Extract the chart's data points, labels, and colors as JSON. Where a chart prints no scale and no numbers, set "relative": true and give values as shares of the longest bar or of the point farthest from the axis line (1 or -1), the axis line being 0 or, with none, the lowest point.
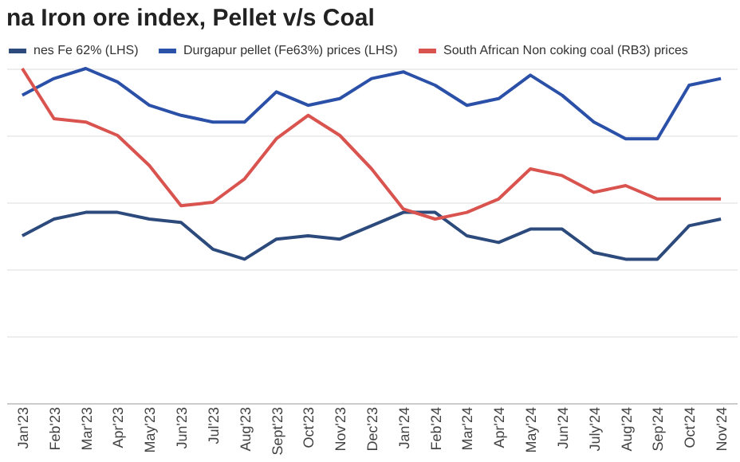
{
  "chart_data": {
    "type": "line",
    "title": "na Iron ore index, Pellet v/s Coal",
    "relative": true,
    "grid": "y",
    "legend": "top",
    "categories": [
      "Jan'23",
      "Feb'23",
      "Mar'23",
      "Apr'23",
      "May'23",
      "Jun'23",
      "Jul'23",
      "Aug'23",
      "Sept'23",
      "Oct'23",
      "Nov'23",
      "Dec'23",
      "Jan'24",
      "Feb'24",
      "Mar'24",
      "Apr'24",
      "May'24",
      "Jun'24",
      "July'24",
      "Aug'24",
      "Sep'24",
      "Oct'24",
      "Nov'24"
    ],
    "series": [
      {
        "name": "nes Fe 62% (LHS)",
        "color": "#2c4a7c",
        "values": [
          0.5,
          0.55,
          0.57,
          0.57,
          0.55,
          0.54,
          0.46,
          0.43,
          0.49,
          0.5,
          0.49,
          0.53,
          0.57,
          0.57,
          0.5,
          0.48,
          0.52,
          0.52,
          0.45,
          0.43,
          0.43,
          0.53,
          0.55
        ]
      },
      {
        "name": "Durgapur pellet (Fe63%) prices (LHS)",
        "color": "#2b50a8",
        "values": [
          0.92,
          0.97,
          1,
          0.96,
          0.89,
          0.86,
          0.84,
          0.84,
          0.93,
          0.89,
          0.91,
          0.97,
          0.99,
          0.95,
          0.89,
          0.91,
          0.98,
          0.92,
          0.84,
          0.79,
          0.79,
          0.95,
          0.97
        ]
      },
      {
        "name": "South African Non coking coal (RB3) prices",
        "color": "#d9534f",
        "values": [
          1,
          0.85,
          0.84,
          0.8,
          0.71,
          0.59,
          0.6,
          0.67,
          0.79,
          0.86,
          0.8,
          0.7,
          0.58,
          0.55,
          0.57,
          0.61,
          0.7,
          0.68,
          0.63,
          0.65,
          0.61,
          0.61,
          0.61
        ]
      }
    ]
  }
}
